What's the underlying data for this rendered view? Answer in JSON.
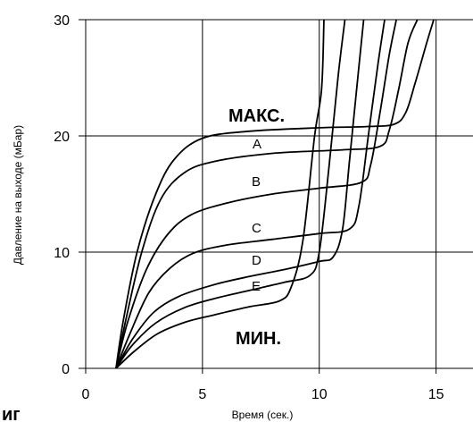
{
  "chart_data": {
    "type": "line",
    "xlabel": "Время (сек.)",
    "ylabel": "Давление на выходе (мБар)",
    "xlim": [
      0,
      16.2
    ],
    "ylim": [
      0,
      30
    ],
    "xticks": [
      "0",
      "5",
      "10",
      "15"
    ],
    "yticks": [
      "0",
      "10",
      "20",
      "30"
    ],
    "grid": true,
    "annotations": {
      "max": "МАКС.",
      "min": "МИН.",
      "corner_fragment": "иг"
    },
    "series": [
      {
        "name": "МАКС.",
        "points": [
          [
            1.3,
            0
          ],
          [
            1.6,
            4
          ],
          [
            2.2,
            10
          ],
          [
            3.0,
            15
          ],
          [
            3.8,
            18
          ],
          [
            5.0,
            19.8
          ],
          [
            7,
            20.4
          ],
          [
            10,
            20.7
          ],
          [
            12,
            20.8
          ],
          [
            13.2,
            21
          ],
          [
            13.7,
            22
          ],
          [
            14.1,
            24.5
          ],
          [
            14.6,
            28
          ],
          [
            14.9,
            30
          ]
        ]
      },
      {
        "name": "A",
        "points": [
          [
            1.3,
            0
          ],
          [
            1.7,
            4
          ],
          [
            2.4,
            10
          ],
          [
            3.2,
            14.5
          ],
          [
            4.2,
            16.8
          ],
          [
            5.5,
            17.8
          ],
          [
            8,
            18.5
          ],
          [
            11,
            18.8
          ],
          [
            12.6,
            19.1
          ],
          [
            13,
            20.5
          ],
          [
            13.4,
            24
          ],
          [
            13.8,
            28
          ],
          [
            14.2,
            30
          ]
        ]
      },
      {
        "name": "B",
        "points": [
          [
            1.3,
            0
          ],
          [
            1.8,
            4
          ],
          [
            2.6,
            8.5
          ],
          [
            3.5,
            11.5
          ],
          [
            4.5,
            13.2
          ],
          [
            6,
            14.2
          ],
          [
            8,
            15
          ],
          [
            10,
            15.5
          ],
          [
            11.8,
            16
          ],
          [
            12.2,
            17.5
          ],
          [
            12.6,
            22
          ],
          [
            13,
            27
          ],
          [
            13.3,
            30
          ]
        ]
      },
      {
        "name": "C",
        "points": [
          [
            1.3,
            0
          ],
          [
            1.9,
            3
          ],
          [
            2.7,
            6.5
          ],
          [
            3.6,
            8.6
          ],
          [
            4.6,
            9.9
          ],
          [
            6,
            10.6
          ],
          [
            8,
            11.1
          ],
          [
            10,
            11.6
          ],
          [
            11.3,
            12
          ],
          [
            11.7,
            14
          ],
          [
            12.1,
            20
          ],
          [
            12.5,
            26
          ],
          [
            12.8,
            30
          ]
        ]
      },
      {
        "name": "D",
        "points": [
          [
            1.3,
            0
          ],
          [
            2,
            2.5
          ],
          [
            2.9,
            4.8
          ],
          [
            4,
            6.2
          ],
          [
            5.5,
            7.2
          ],
          [
            7,
            7.9
          ],
          [
            8.5,
            8.5
          ],
          [
            10,
            9.2
          ],
          [
            10.6,
            9.6
          ],
          [
            11,
            12
          ],
          [
            11.3,
            18
          ],
          [
            11.7,
            26
          ],
          [
            11.9,
            30
          ]
        ]
      },
      {
        "name": "E",
        "points": [
          [
            1.3,
            0
          ],
          [
            2,
            2
          ],
          [
            3,
            3.9
          ],
          [
            4.2,
            5.2
          ],
          [
            5.5,
            6
          ],
          [
            7,
            6.7
          ],
          [
            8.5,
            7.4
          ],
          [
            9.6,
            8
          ],
          [
            10,
            10
          ],
          [
            10.4,
            17
          ],
          [
            10.8,
            25
          ],
          [
            11.1,
            30
          ]
        ]
      },
      {
        "name": "МИН.",
        "points": [
          [
            1.3,
            0
          ],
          [
            2.1,
            1.5
          ],
          [
            3.1,
            3
          ],
          [
            4.3,
            4
          ],
          [
            5.5,
            4.6
          ],
          [
            7,
            5.3
          ],
          [
            8.3,
            5.8
          ],
          [
            8.8,
            7
          ],
          [
            9.3,
            11
          ],
          [
            9.8,
            20
          ],
          [
            10.1,
            24
          ],
          [
            10.2,
            30
          ]
        ]
      }
    ]
  }
}
